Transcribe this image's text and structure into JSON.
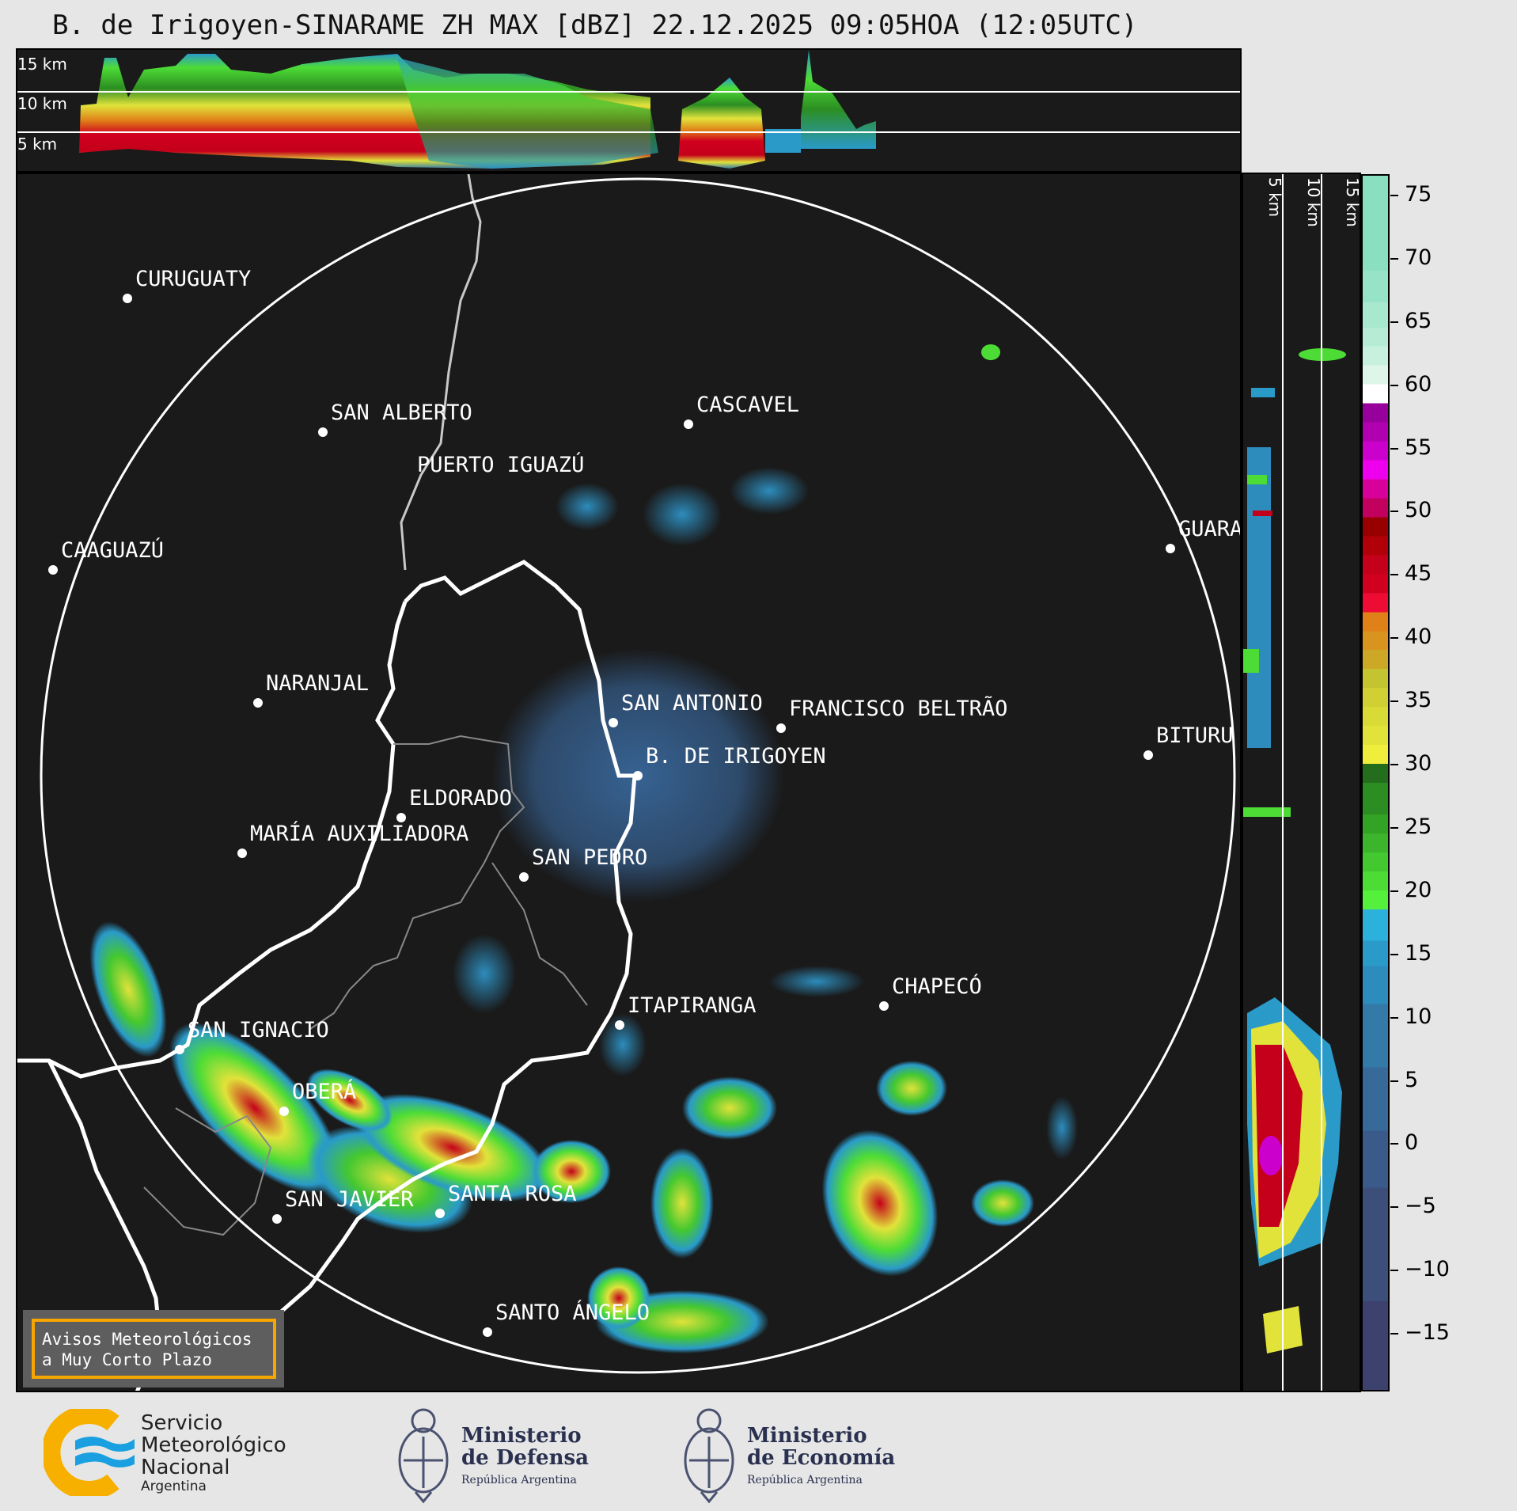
{
  "title": "B. de Irigoyen-SINARAME ZH MAX [dBZ] 22.12.2025 09:05HOA (12:05UTC)",
  "top_panel": {
    "labels": [
      "15 km",
      "10 km",
      "5 km"
    ]
  },
  "side_panel": {
    "labels": [
      "5 km",
      "10 km",
      "15 km"
    ]
  },
  "map": {
    "range_ring": true,
    "cities": [
      {
        "name": "CURUGUATY"
      },
      {
        "name": "SAN ALBERTO"
      },
      {
        "name": "CASCAVEL"
      },
      {
        "name": "CAAGUAZÚ"
      },
      {
        "name": "GUARA"
      },
      {
        "name": "PUERTO IGUAZÚ"
      },
      {
        "name": "NARANJAL"
      },
      {
        "name": "SAN ANTONIO"
      },
      {
        "name": "FRANCISCO BELTRÃO"
      },
      {
        "name": "BITURU"
      },
      {
        "name": "B. DE IRIGOYEN"
      },
      {
        "name": "ELDORADO"
      },
      {
        "name": "MARÍA AUXILIADORA"
      },
      {
        "name": "SAN PEDRO"
      },
      {
        "name": "CHAPECÓ"
      },
      {
        "name": "ITAPIRANGA"
      },
      {
        "name": "SAN IGNACIO"
      },
      {
        "name": "OBERÁ"
      },
      {
        "name": "SAN JAVIER"
      },
      {
        "name": "SANTA ROSA"
      },
      {
        "name": "SANTO ÁNGELO"
      }
    ]
  },
  "colorbar": {
    "unit": "dBZ",
    "range": [
      -19.5,
      76.5
    ],
    "ticks": [
      "75",
      "70",
      "65",
      "60",
      "55",
      "50",
      "45",
      "40",
      "35",
      "30",
      "25",
      "20",
      "15",
      "10",
      "5",
      "0",
      "−5",
      "−10",
      "−15"
    ],
    "bands": [
      [
        -19.5,
        "#3d416d"
      ],
      [
        -12.5,
        "#3c4e7a"
      ],
      [
        -3.5,
        "#3a5b8a"
      ],
      [
        1,
        "#376a98"
      ],
      [
        6,
        "#347aa8"
      ],
      [
        11,
        "#2d8cbc"
      ],
      [
        14,
        "#2a9ac9"
      ],
      [
        16,
        "#2cb0dc"
      ],
      [
        18.5,
        "#55f03c"
      ],
      [
        20,
        "#4ddc36"
      ],
      [
        21.5,
        "#44c830"
      ],
      [
        23,
        "#3cb42c"
      ],
      [
        24.5,
        "#33a326"
      ],
      [
        26,
        "#2c8e22"
      ],
      [
        28.5,
        "#236d1c"
      ],
      [
        30,
        "#f0ee3c"
      ],
      [
        31.5,
        "#e1e23a"
      ],
      [
        33,
        "#d8da36"
      ],
      [
        34.5,
        "#d0d034"
      ],
      [
        36,
        "#c4c430"
      ],
      [
        37.5,
        "#cca826"
      ],
      [
        39,
        "#d8941e"
      ],
      [
        40.5,
        "#e08018"
      ],
      [
        42,
        "#ee0c34"
      ],
      [
        43.5,
        "#d0001e"
      ],
      [
        45,
        "#c4001a"
      ],
      [
        46.5,
        "#b20008"
      ],
      [
        48,
        "#980000"
      ],
      [
        49.5,
        "#c2005e"
      ],
      [
        51,
        "#d8009a"
      ],
      [
        52.5,
        "#ee00ee"
      ],
      [
        54,
        "#cc00cc"
      ],
      [
        55.5,
        "#b000b0"
      ],
      [
        57,
        "#98009c"
      ],
      [
        58.5,
        "#ffffff"
      ],
      [
        60,
        "#def5ea"
      ],
      [
        61.5,
        "#c8f0de"
      ],
      [
        63,
        "#b6ecd6"
      ],
      [
        64.5,
        "#a8e8cf"
      ],
      [
        66.5,
        "#97e3c8"
      ],
      [
        69,
        "#8adfc0"
      ]
    ]
  },
  "warning_box": {
    "line1": "Avisos Meteorológicos",
    "line2": "a Muy Corto Plazo",
    "border_color": "#f7a500"
  },
  "footer": {
    "smn": {
      "line1": "Servicio",
      "line2": "Meteorológico",
      "line3": "Nacional",
      "line4": "Argentina"
    },
    "defensa": {
      "line1": "Ministerio",
      "line2": "de Defensa",
      "line3": "República Argentina"
    },
    "economia": {
      "line1": "Ministerio",
      "line2": "de Economía",
      "line3": "República Argentina"
    }
  }
}
